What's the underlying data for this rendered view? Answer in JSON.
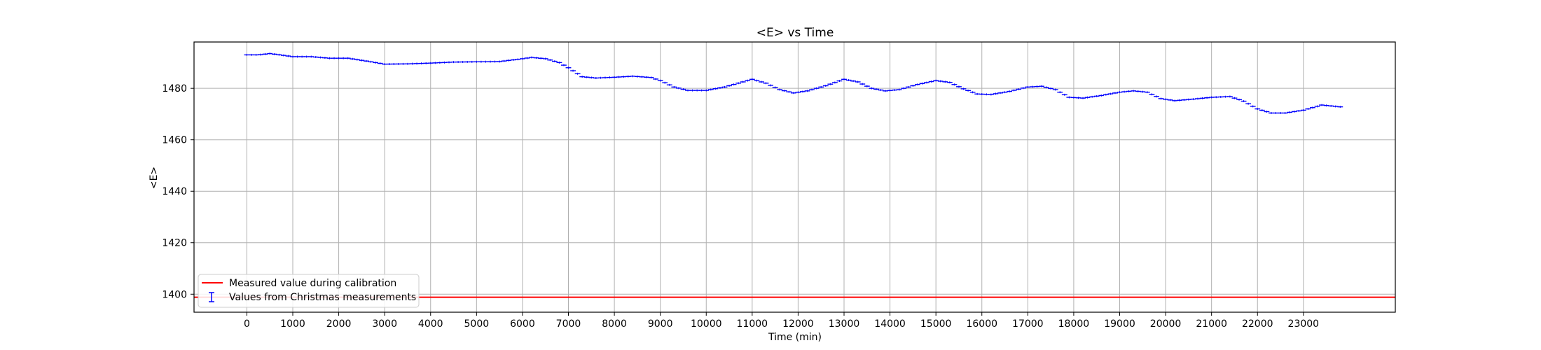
{
  "chart_data": {
    "type": "scatter",
    "title": "<E> vs Time",
    "xlabel": "Time (min)",
    "ylabel": "<E>",
    "xlim": [
      -1150,
      25000
    ],
    "ylim": [
      1393,
      1498
    ],
    "xticks": [
      0,
      1000,
      2000,
      3000,
      4000,
      5000,
      6000,
      7000,
      8000,
      9000,
      10000,
      11000,
      12000,
      13000,
      14000,
      15000,
      16000,
      17000,
      18000,
      19000,
      20000,
      21000,
      22000,
      23000
    ],
    "yticks": [
      1400,
      1420,
      1440,
      1460,
      1480
    ],
    "grid": true,
    "legend_position": "bottom-left",
    "series": [
      {
        "name": "Measured value during calibration",
        "kind": "hline",
        "color": "#ff0000",
        "y": 1398.8
      },
      {
        "name": "Values from Christmas measurements",
        "kind": "errorbar",
        "color": "#0000ff",
        "x_halfwidth": 60,
        "y_err": 0.4,
        "anchors_x": [
          0,
          250,
          500,
          800,
          1000,
          1400,
          1800,
          2200,
          2600,
          3000,
          3500,
          4000,
          4500,
          5000,
          5500,
          6000,
          6200,
          6500,
          6800,
          7000,
          7300,
          7600,
          8000,
          8400,
          8800,
          9000,
          9300,
          9600,
          10000,
          10400,
          10800,
          11000,
          11300,
          11600,
          11900,
          12200,
          12600,
          13000,
          13300,
          13600,
          13900,
          14200,
          14600,
          15000,
          15300,
          15600,
          15900,
          16200,
          16600,
          17000,
          17300,
          17600,
          17900,
          18200,
          18600,
          19000,
          19300,
          19600,
          19900,
          20200,
          20600,
          21000,
          21400,
          21700,
          22000,
          22300,
          22600,
          23000,
          23400,
          23800
        ],
        "anchors_y": [
          1493,
          1493,
          1493.5,
          1492.8,
          1492.3,
          1492.3,
          1491.7,
          1491.7,
          1490.6,
          1489.4,
          1489.5,
          1489.8,
          1490.2,
          1490.3,
          1490.4,
          1491.5,
          1492,
          1491.5,
          1490,
          1488,
          1484.5,
          1484,
          1484.3,
          1484.7,
          1484.2,
          1483,
          1480.5,
          1479.2,
          1479.2,
          1480.5,
          1482.5,
          1483.5,
          1482,
          1479.5,
          1478.2,
          1479,
          1481,
          1483.5,
          1482.5,
          1480,
          1479,
          1479.5,
          1481.5,
          1483,
          1482.3,
          1479.8,
          1477.8,
          1477.6,
          1478.8,
          1480.5,
          1480.8,
          1479.5,
          1476.5,
          1476.2,
          1477.2,
          1478.5,
          1479,
          1478.5,
          1476,
          1475.2,
          1475.8,
          1476.5,
          1476.8,
          1475,
          1472,
          1470.4,
          1470.4,
          1471.5,
          1473.5,
          1472.8
        ],
        "step": 100
      }
    ]
  }
}
